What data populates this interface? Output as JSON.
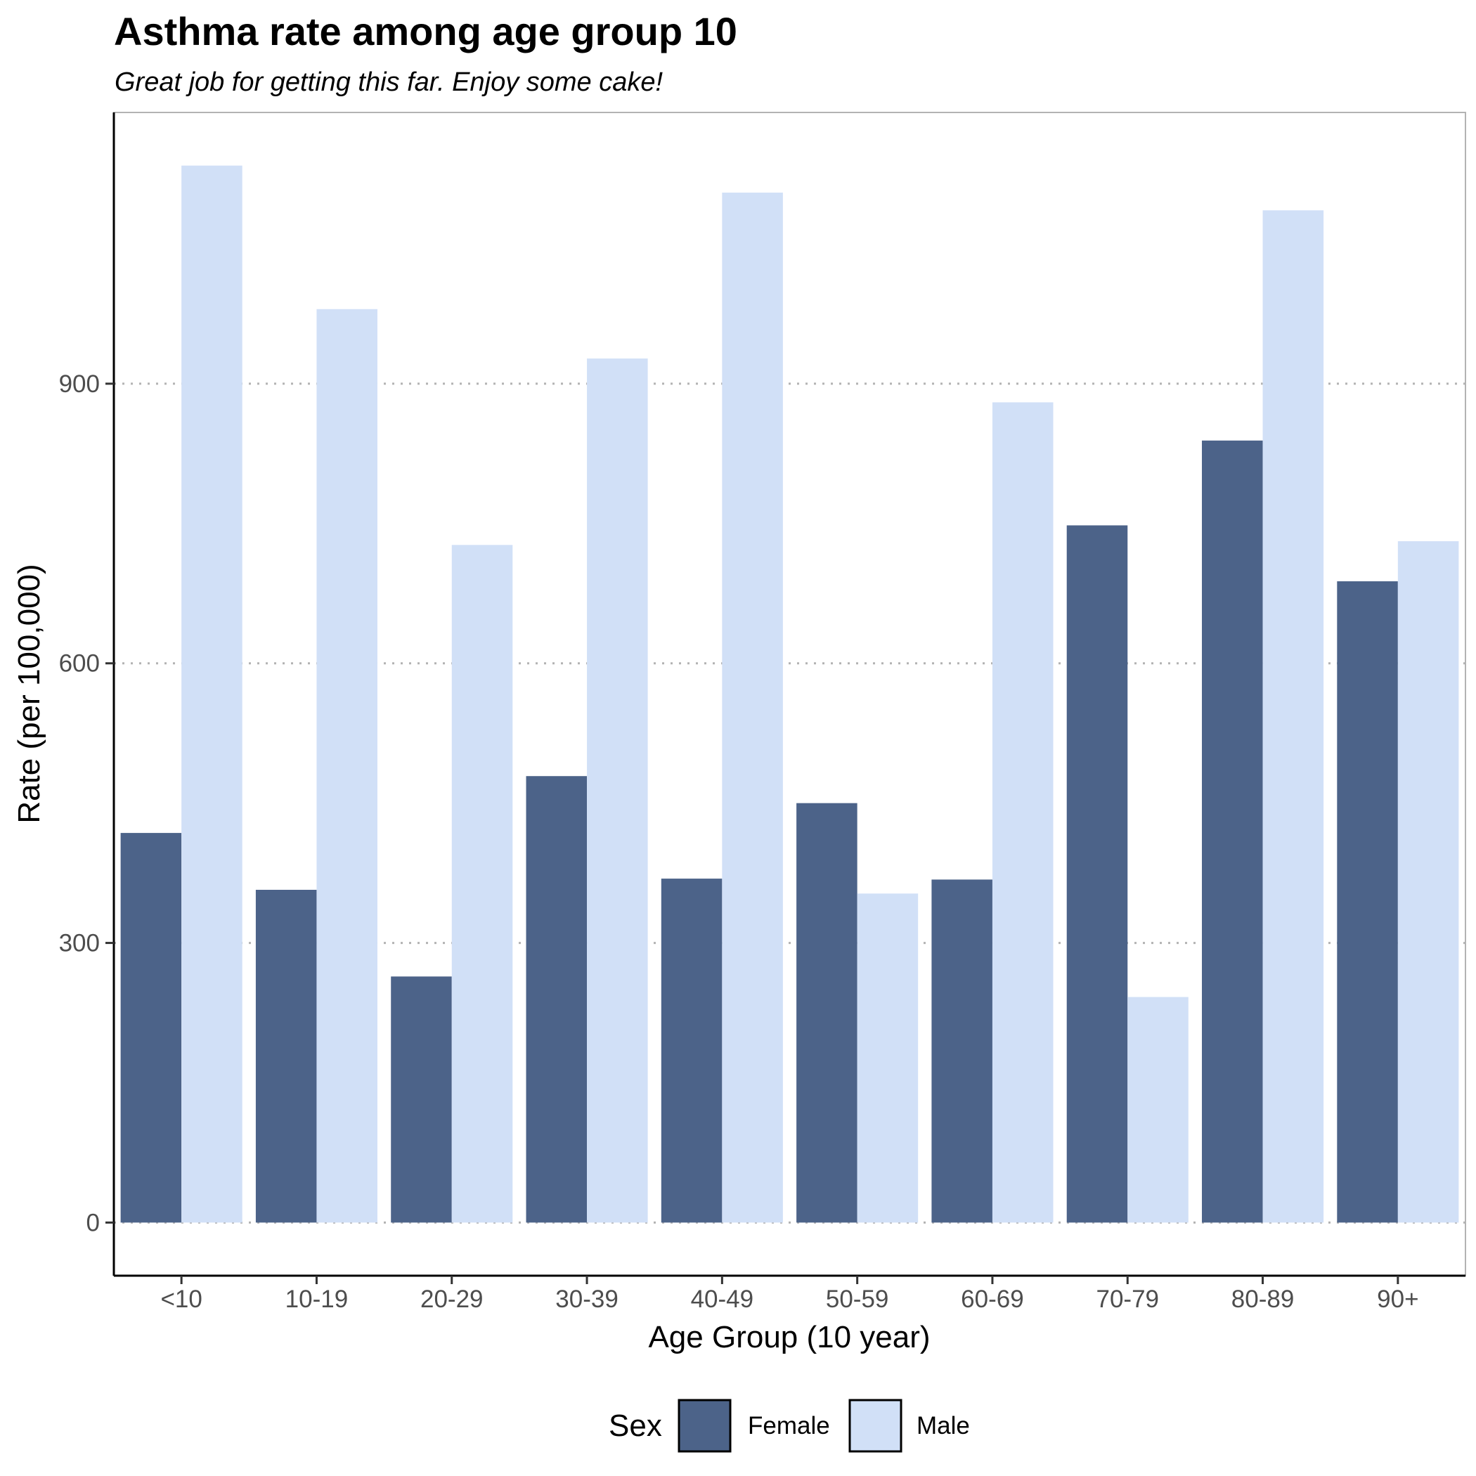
{
  "chart_data": {
    "type": "bar",
    "title": "Asthma rate among age group  10",
    "subtitle": "Great job for getting this far. Enjoy some cake!",
    "xlabel": "Age Group (10 year)",
    "ylabel": "Rate (per 100,000)",
    "categories": [
      "<10",
      "10-19",
      "20-29",
      "30-39",
      "40-49",
      "50-59",
      "60-69",
      "70-79",
      "80-89",
      "90+"
    ],
    "series": [
      {
        "name": "Female",
        "color": "#4c6389",
        "values": [
          418,
          357,
          264,
          479,
          369,
          450,
          368,
          748,
          839,
          688
        ]
      },
      {
        "name": "Male",
        "color": "#d1e0f7",
        "values": [
          1134,
          980,
          727,
          927,
          1105,
          353,
          880,
          242,
          1086,
          731
        ]
      }
    ],
    "yticks": [
      0,
      300,
      600,
      900
    ],
    "ylim": [
      -57,
      1191
    ],
    "grid": "horizontal dotted",
    "legend": {
      "title": "Sex",
      "position": "bottom"
    }
  }
}
